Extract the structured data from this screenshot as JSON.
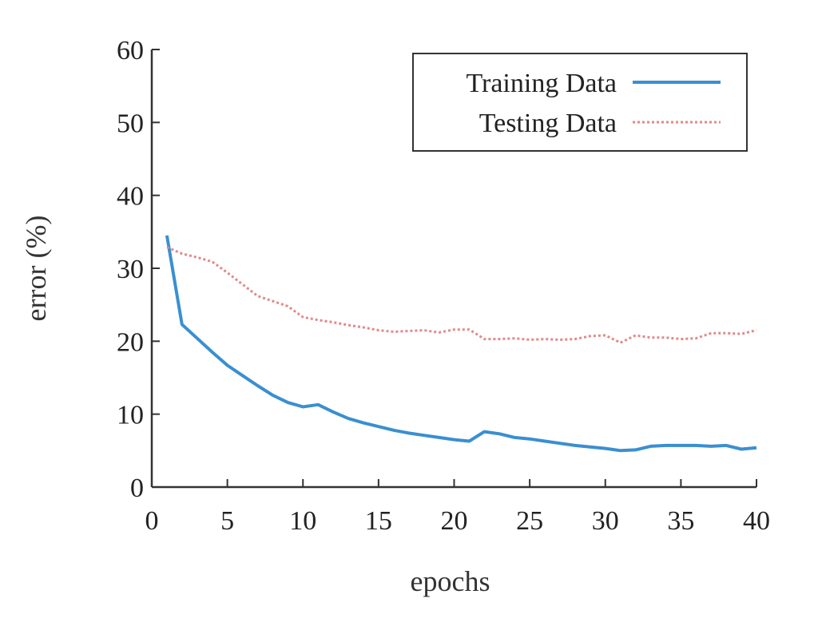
{
  "chart_data": {
    "type": "line",
    "title": "",
    "xlabel": "epochs",
    "ylabel": "error (%)",
    "xlim": [
      0,
      40
    ],
    "ylim": [
      0,
      60
    ],
    "xticks": [
      0,
      5,
      10,
      15,
      20,
      25,
      30,
      35,
      40
    ],
    "yticks": [
      0,
      10,
      20,
      30,
      40,
      50,
      60
    ],
    "xtick_labels": [
      "0",
      "5",
      "10",
      "15",
      "20",
      "25",
      "30",
      "35",
      "40"
    ],
    "ytick_labels": [
      "0",
      "10",
      "20",
      "30",
      "40",
      "50",
      "60"
    ],
    "grid": false,
    "legend_position": "top-right",
    "series": [
      {
        "name": "Training Data",
        "style": "solid",
        "color": "#3a8fd0",
        "x": [
          1,
          2,
          3,
          4,
          5,
          6,
          7,
          8,
          9,
          10,
          11,
          12,
          13,
          14,
          15,
          16,
          17,
          18,
          19,
          20,
          21,
          22,
          23,
          24,
          25,
          26,
          27,
          28,
          29,
          30,
          31,
          32,
          33,
          34,
          35,
          36,
          37,
          38,
          39,
          40
        ],
        "values": [
          34.5,
          22.3,
          20.4,
          18.5,
          16.7,
          15.3,
          13.9,
          12.6,
          11.6,
          11.0,
          11.3,
          10.3,
          9.4,
          8.8,
          8.3,
          7.8,
          7.4,
          7.1,
          6.8,
          6.5,
          6.3,
          7.6,
          7.3,
          6.8,
          6.6,
          6.3,
          6.0,
          5.7,
          5.5,
          5.3,
          5.0,
          5.1,
          5.6,
          5.7,
          5.7,
          5.7,
          5.6,
          5.7,
          5.2,
          5.4
        ]
      },
      {
        "name": "Testing Data",
        "style": "dotted",
        "color": "#e08a8a",
        "x": [
          1,
          2,
          3,
          4,
          5,
          6,
          7,
          8,
          9,
          10,
          11,
          12,
          13,
          14,
          15,
          16,
          17,
          18,
          19,
          20,
          21,
          22,
          23,
          24,
          25,
          26,
          27,
          28,
          29,
          30,
          31,
          32,
          33,
          34,
          35,
          36,
          37,
          38,
          39,
          40
        ],
        "values": [
          32.9,
          32.0,
          31.5,
          30.9,
          29.4,
          27.8,
          26.2,
          25.5,
          24.8,
          23.3,
          22.9,
          22.6,
          22.2,
          21.9,
          21.5,
          21.3,
          21.4,
          21.5,
          21.2,
          21.6,
          21.6,
          20.3,
          20.3,
          20.4,
          20.2,
          20.3,
          20.2,
          20.3,
          20.7,
          20.8,
          19.8,
          20.8,
          20.5,
          20.5,
          20.3,
          20.4,
          21.1,
          21.1,
          21.0,
          21.5
        ]
      }
    ]
  }
}
